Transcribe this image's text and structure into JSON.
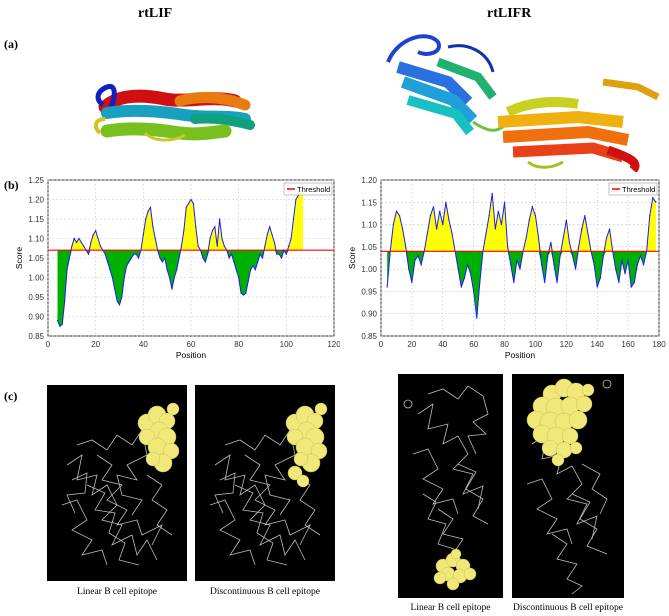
{
  "headings": {
    "left": "rtLIF",
    "right": "rtLIFR"
  },
  "panels": {
    "a": "(a)",
    "b": "(b)",
    "c": "(c)"
  },
  "colors": {
    "above": "#ffff00",
    "below": "#00b000",
    "line": "#1a1aff",
    "threshold": "#ff0000"
  },
  "chart_data": [
    {
      "type": "area",
      "ylabel": "Score",
      "xlabel": "Position",
      "legend": "Threshold",
      "legend_position": "top-right",
      "grid": true,
      "threshold": 1.07,
      "xlim": [
        0,
        120
      ],
      "ylim": [
        0.85,
        1.25
      ],
      "xticks": [
        "0",
        "20",
        "40",
        "60",
        "80",
        "100",
        "120"
      ],
      "yticks": [
        "0.85",
        "0.90",
        "0.95",
        "1.00",
        "1.05",
        "1.10",
        "1.15",
        "1.20",
        "1.25"
      ],
      "x": [
        4,
        5,
        6,
        7,
        8,
        9,
        10,
        11,
        12,
        13,
        14,
        15,
        16,
        17,
        18,
        19,
        20,
        21,
        22,
        23,
        24,
        25,
        26,
        27,
        28,
        29,
        30,
        31,
        32,
        33,
        34,
        35,
        36,
        37,
        38,
        39,
        40,
        41,
        42,
        43,
        44,
        45,
        46,
        47,
        48,
        49,
        50,
        51,
        52,
        53,
        54,
        55,
        56,
        57,
        58,
        59,
        60,
        61,
        62,
        63,
        64,
        65,
        66,
        67,
        68,
        69,
        70,
        71,
        72,
        73,
        74,
        75,
        76,
        77,
        78,
        79,
        80,
        81,
        82,
        83,
        84,
        85,
        86,
        87,
        88,
        89,
        90,
        91,
        92,
        93,
        94,
        95,
        96,
        97,
        98,
        99,
        100,
        101,
        102,
        103,
        104,
        105,
        106,
        107
      ],
      "values": [
        0.89,
        0.875,
        0.88,
        0.94,
        1.02,
        1.05,
        1.08,
        1.1,
        1.09,
        1.1,
        1.09,
        1.08,
        1.07,
        1.06,
        1.09,
        1.11,
        1.12,
        1.1,
        1.08,
        1.07,
        1.06,
        1.04,
        1.02,
        1.0,
        0.97,
        0.94,
        0.93,
        0.95,
        1.0,
        1.03,
        1.04,
        1.05,
        1.06,
        1.06,
        1.05,
        1.07,
        1.11,
        1.15,
        1.17,
        1.18,
        1.13,
        1.1,
        1.07,
        1.05,
        1.04,
        1.05,
        1.02,
        1.0,
        0.97,
        1.0,
        1.02,
        1.05,
        1.08,
        1.12,
        1.18,
        1.19,
        1.2,
        1.19,
        1.13,
        1.08,
        1.07,
        1.05,
        1.04,
        1.06,
        1.1,
        1.12,
        1.13,
        1.08,
        1.15,
        1.1,
        1.08,
        1.07,
        1.05,
        1.06,
        1.04,
        1.02,
        1.0,
        0.96,
        0.955,
        0.96,
        0.99,
        1.02,
        1.03,
        1.02,
        1.04,
        1.06,
        1.05,
        1.08,
        1.11,
        1.13,
        1.11,
        1.09,
        1.06,
        1.06,
        1.05,
        1.07,
        1.06,
        1.08,
        1.1,
        1.15,
        1.2,
        1.21,
        1.23,
        1.22
      ]
    },
    {
      "type": "area",
      "ylabel": "Score",
      "xlabel": "Position",
      "legend": "Threshold",
      "legend_position": "top-right",
      "grid": true,
      "threshold": 1.04,
      "xlim": [
        0,
        180
      ],
      "ylim": [
        0.85,
        1.2
      ],
      "xticks": [
        "0",
        "20",
        "40",
        "60",
        "80",
        "100",
        "120",
        "140",
        "160",
        "180"
      ],
      "yticks": [
        "0.85",
        "0.90",
        "0.95",
        "1.00",
        "1.05",
        "1.10",
        "1.15",
        "1.20"
      ],
      "x": [
        4,
        6,
        8,
        10,
        12,
        14,
        16,
        18,
        20,
        22,
        24,
        26,
        28,
        30,
        32,
        34,
        36,
        38,
        40,
        42,
        44,
        46,
        48,
        50,
        52,
        54,
        56,
        58,
        60,
        62,
        64,
        66,
        68,
        70,
        72,
        74,
        76,
        78,
        80,
        82,
        84,
        86,
        88,
        90,
        92,
        94,
        96,
        98,
        100,
        102,
        104,
        106,
        108,
        110,
        112,
        114,
        116,
        118,
        120,
        122,
        124,
        126,
        128,
        130,
        132,
        134,
        136,
        138,
        140,
        142,
        144,
        146,
        148,
        150,
        152,
        154,
        156,
        158,
        160,
        162,
        164,
        166,
        168,
        170,
        172,
        174,
        176,
        178
      ],
      "values": [
        0.96,
        1.04,
        1.1,
        1.13,
        1.12,
        1.09,
        1.05,
        1.0,
        0.97,
        1.02,
        1.03,
        1.01,
        1.04,
        1.08,
        1.12,
        1.14,
        1.09,
        1.13,
        1.1,
        1.15,
        1.11,
        1.08,
        1.04,
        1.0,
        0.96,
        0.98,
        1.01,
        0.99,
        0.95,
        0.89,
        0.97,
        1.04,
        1.08,
        1.12,
        1.17,
        1.09,
        1.13,
        1.1,
        1.15,
        1.05,
        1.01,
        0.97,
        1.02,
        1.0,
        1.04,
        1.07,
        1.11,
        1.14,
        1.12,
        1.07,
        1.01,
        0.97,
        1.03,
        1.06,
        1.01,
        0.97,
        1.03,
        1.07,
        1.11,
        1.06,
        1.03,
        1.0,
        1.05,
        1.09,
        1.12,
        1.08,
        1.04,
        1.01,
        0.96,
        0.98,
        1.03,
        1.07,
        1.09,
        1.04,
        1.0,
        0.97,
        1.02,
        0.99,
        1.02,
        0.96,
        0.97,
        1.01,
        1.03,
        1.01,
        1.04,
        1.12,
        1.16,
        1.15
      ]
    }
  ],
  "captions": {
    "linear": "Linear B cell epitope",
    "discontinuous": "Discontinuous B cell epitope"
  }
}
